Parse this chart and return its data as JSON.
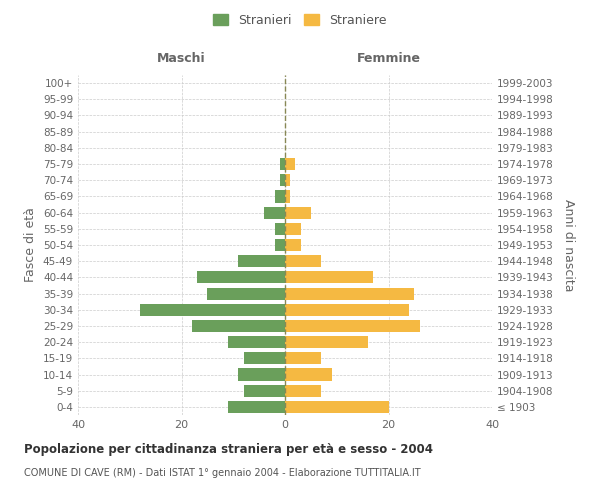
{
  "age_groups": [
    "100+",
    "95-99",
    "90-94",
    "85-89",
    "80-84",
    "75-79",
    "70-74",
    "65-69",
    "60-64",
    "55-59",
    "50-54",
    "45-49",
    "40-44",
    "35-39",
    "30-34",
    "25-29",
    "20-24",
    "15-19",
    "10-14",
    "5-9",
    "0-4"
  ],
  "birth_years": [
    "≤ 1903",
    "1904-1908",
    "1909-1913",
    "1914-1918",
    "1919-1923",
    "1924-1928",
    "1929-1933",
    "1934-1938",
    "1939-1943",
    "1944-1948",
    "1949-1953",
    "1954-1958",
    "1959-1963",
    "1964-1968",
    "1969-1973",
    "1974-1978",
    "1979-1983",
    "1984-1988",
    "1989-1993",
    "1994-1998",
    "1999-2003"
  ],
  "maschi": [
    0,
    0,
    0,
    0,
    0,
    1,
    1,
    2,
    4,
    2,
    2,
    9,
    17,
    15,
    28,
    18,
    11,
    8,
    9,
    8,
    11
  ],
  "femmine": [
    0,
    0,
    0,
    0,
    0,
    2,
    1,
    1,
    5,
    3,
    3,
    7,
    17,
    25,
    24,
    26,
    16,
    7,
    9,
    7,
    20
  ],
  "color_maschi": "#6a9f5b",
  "color_femmine": "#f5b942",
  "title": "Popolazione per cittadinanza straniera per età e sesso - 2004",
  "subtitle": "COMUNE DI CAVE (RM) - Dati ISTAT 1° gennaio 2004 - Elaborazione TUTTITALIA.IT",
  "ylabel_left": "Fasce di età",
  "ylabel_right": "Anni di nascita",
  "label_maschi": "Maschi",
  "label_femmine": "Femmine",
  "legend_maschi": "Stranieri",
  "legend_femmine": "Straniere",
  "xlim": 40,
  "background_color": "#ffffff",
  "grid_color": "#cccccc",
  "dashed_line_color": "#888855"
}
